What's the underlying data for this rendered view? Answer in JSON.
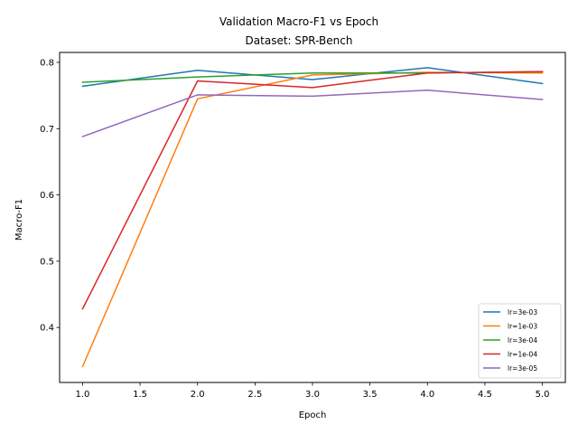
{
  "chart_data": {
    "type": "line",
    "title": "Validation Macro-F1 vs Epoch",
    "subtitle": "Dataset: SPR-Bench",
    "xlabel": "Epoch",
    "ylabel": "Macro-F1",
    "xlim": [
      0.8,
      5.2
    ],
    "ylim": [
      0.317,
      0.815
    ],
    "xticks": [
      1.0,
      1.5,
      2.0,
      2.5,
      3.0,
      3.5,
      4.0,
      4.5,
      5.0
    ],
    "xtick_labels": [
      "1.0",
      "1.5",
      "2.0",
      "2.5",
      "3.0",
      "3.5",
      "4.0",
      "4.5",
      "5.0"
    ],
    "yticks": [
      0.4,
      0.5,
      0.6,
      0.7,
      0.8
    ],
    "ytick_labels": [
      "0.4",
      "0.5",
      "0.6",
      "0.7",
      "0.8"
    ],
    "grid": false,
    "legend_position": "bottom-right",
    "x": [
      1,
      2,
      3,
      4,
      5
    ],
    "series": [
      {
        "name": "lr=3e-03",
        "color": "#1f77b4",
        "values": [
          0.764,
          0.788,
          0.774,
          0.792,
          0.768
        ]
      },
      {
        "name": "lr=1e-03",
        "color": "#ff7f0e",
        "values": [
          0.341,
          0.745,
          0.781,
          0.785,
          0.784
        ]
      },
      {
        "name": "lr=3e-04",
        "color": "#2ca02c",
        "values": [
          0.77,
          0.778,
          0.784,
          0.784,
          0.786
        ]
      },
      {
        "name": "lr=1e-04",
        "color": "#d62728",
        "values": [
          0.428,
          0.772,
          0.762,
          0.784,
          0.786
        ]
      },
      {
        "name": "lr=3e-05",
        "color": "#9467bd",
        "values": [
          0.688,
          0.751,
          0.749,
          0.758,
          0.744
        ]
      }
    ]
  }
}
